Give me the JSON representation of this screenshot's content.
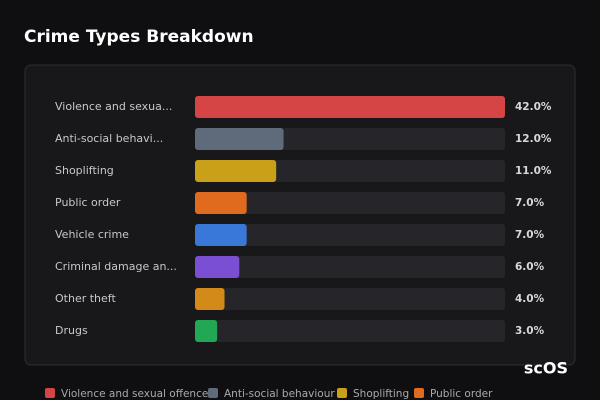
{
  "chart_data": {
    "type": "bar",
    "orientation": "horizontal",
    "title": "Crime Types Breakdown",
    "categories": [
      "Violence and sexua...",
      "Anti-social behavi...",
      "Shoplifting",
      "Public order",
      "Vehicle crime",
      "Criminal damage an...",
      "Other theft",
      "Drugs"
    ],
    "values": [
      42,
      12,
      11,
      7,
      7,
      6,
      4,
      3
    ],
    "value_labels": [
      "42.0%",
      "12.0%",
      "11.0%",
      "7.0%",
      "7.0%",
      "6.0%",
      "4.0%",
      "3.0%"
    ],
    "colors": [
      "#d64545",
      "#5f6b7a",
      "#c9a018",
      "#e06a1e",
      "#3a78d8",
      "#7b4fd1",
      "#d48a18",
      "#22a855"
    ],
    "xlim": [
      0,
      42
    ],
    "legend": [
      "Violence and sexual offences",
      "Anti-social behaviour",
      "Shoplifting",
      "Public order"
    ],
    "watermark": "scOS"
  }
}
